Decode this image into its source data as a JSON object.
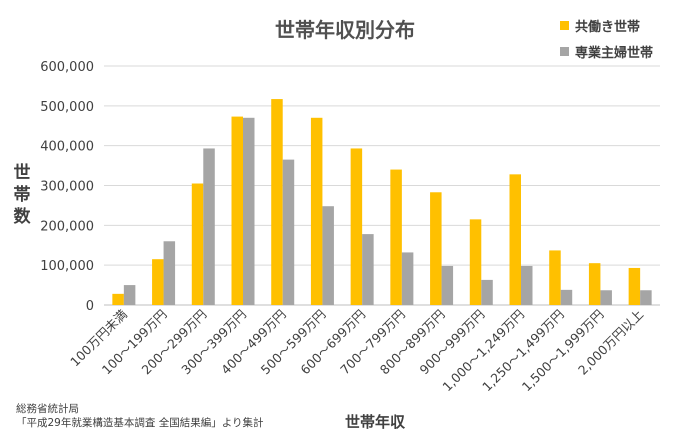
{
  "chart_data": {
    "type": "bar",
    "title": "世帯年収別分布",
    "xlabel": "世帯年収",
    "ylabel": "世帯数",
    "ylim": [
      0,
      600000
    ],
    "yticks": [
      0,
      100000,
      200000,
      300000,
      400000,
      500000,
      600000
    ],
    "ytick_labels": [
      "0",
      "100,000",
      "200,000",
      "300,000",
      "400,000",
      "500,000",
      "600,000"
    ],
    "grid": true,
    "legend_position": "top-right",
    "categories": [
      "100万円未満",
      "100～199万円",
      "200～299万円",
      "300～399万円",
      "400～499万円",
      "500～599万円",
      "600～699万円",
      "700～799万円",
      "800～899万円",
      "900～999万円",
      "1,000～1,249万円",
      "1,250～1,499万円",
      "1,500～1,999万円",
      "2,000万円以上"
    ],
    "series": [
      {
        "name": "共働き世帯",
        "color": "#FFC000",
        "values": [
          28000,
          115000,
          305000,
          473000,
          517000,
          470000,
          393000,
          340000,
          283000,
          215000,
          328000,
          137000,
          105000,
          93000
        ]
      },
      {
        "name": "専業主婦世帯",
        "color": "#A5A5A5",
        "values": [
          50000,
          160000,
          393000,
          470000,
          365000,
          248000,
          178000,
          132000,
          98000,
          63000,
          98000,
          38000,
          37000,
          37000
        ]
      }
    ]
  },
  "source_lines": [
    "総務省統計局",
    "「平成29年就業構造基本調査 全国結果編」より集計"
  ]
}
